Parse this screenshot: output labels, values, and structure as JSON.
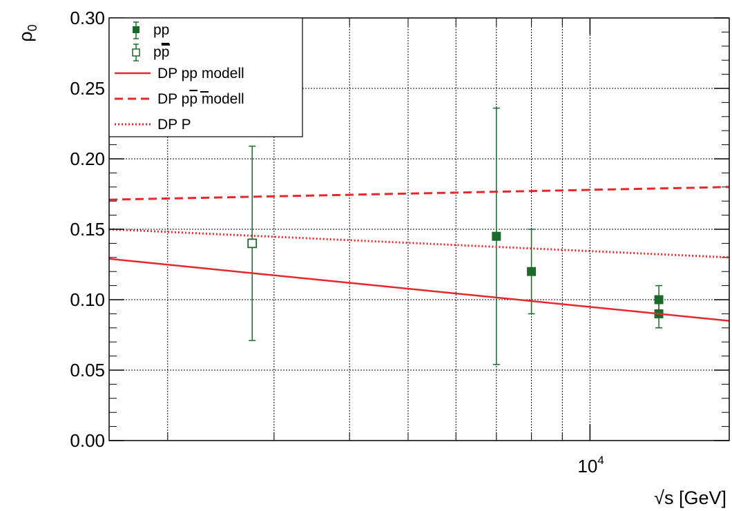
{
  "chart_data": {
    "type": "scatter",
    "x_scale": "log",
    "grid": true,
    "legend_position": "top-left",
    "xlabel": "√s [GeV]",
    "ylabel_main": "ρ",
    "ylabel_sub": "0",
    "xlim": [
      1600,
      17000
    ],
    "ylim": [
      0.0,
      0.3
    ],
    "x_major_ticks": [
      {
        "value": 10000,
        "base": "10",
        "exp": "4"
      }
    ],
    "x_minor_ticks": [
      2000,
      3000,
      4000,
      5000,
      6000,
      7000,
      8000,
      9000
    ],
    "y_ticks": [
      {
        "value": 0.0,
        "label": "0.00"
      },
      {
        "value": 0.05,
        "label": "0.05"
      },
      {
        "value": 0.1,
        "label": "0.10"
      },
      {
        "value": 0.15,
        "label": "0.15"
      },
      {
        "value": 0.2,
        "label": "0.20"
      },
      {
        "value": 0.25,
        "label": "0.25"
      },
      {
        "value": 0.3,
        "label": "0.30"
      }
    ],
    "series": [
      {
        "name": "pp",
        "kind": "points",
        "marker": "filled-square",
        "color": "#1a6b2a",
        "points": [
          {
            "x": 7000,
            "y": 0.145,
            "ylow": 0.054,
            "yhigh": 0.236
          },
          {
            "x": 8000,
            "y": 0.12,
            "ylow": 0.09,
            "yhigh": 0.15
          },
          {
            "x": 13000,
            "y": 0.1,
            "ylow": 0.09,
            "yhigh": 0.11
          },
          {
            "x": 13000,
            "y": 0.09,
            "ylow": 0.08,
            "yhigh": 0.1
          }
        ]
      },
      {
        "name": "p",
        "name_bar": "p",
        "kind": "points",
        "marker": "open-square",
        "color": "#1a6b2a",
        "points": [
          {
            "x": 2760,
            "y": 0.14,
            "ylow": 0.071,
            "yhigh": 0.209
          }
        ]
      },
      {
        "name": "DP pp modell",
        "kind": "line",
        "style": "solid",
        "color": "#e8262b",
        "x": [
          1600,
          17000
        ],
        "y": [
          0.129,
          0.085
        ]
      },
      {
        "name": "DP p",
        "name_bar": "p",
        "name_suffix": " modell",
        "kind": "line",
        "style": "dashed",
        "color": "#e8262b",
        "x": [
          1600,
          17000
        ],
        "y": [
          0.171,
          0.18
        ]
      },
      {
        "name": "DP P",
        "kind": "line",
        "style": "dotted",
        "color": "#e8262b",
        "x": [
          1600,
          17000
        ],
        "y": [
          0.15,
          0.13
        ]
      }
    ]
  }
}
